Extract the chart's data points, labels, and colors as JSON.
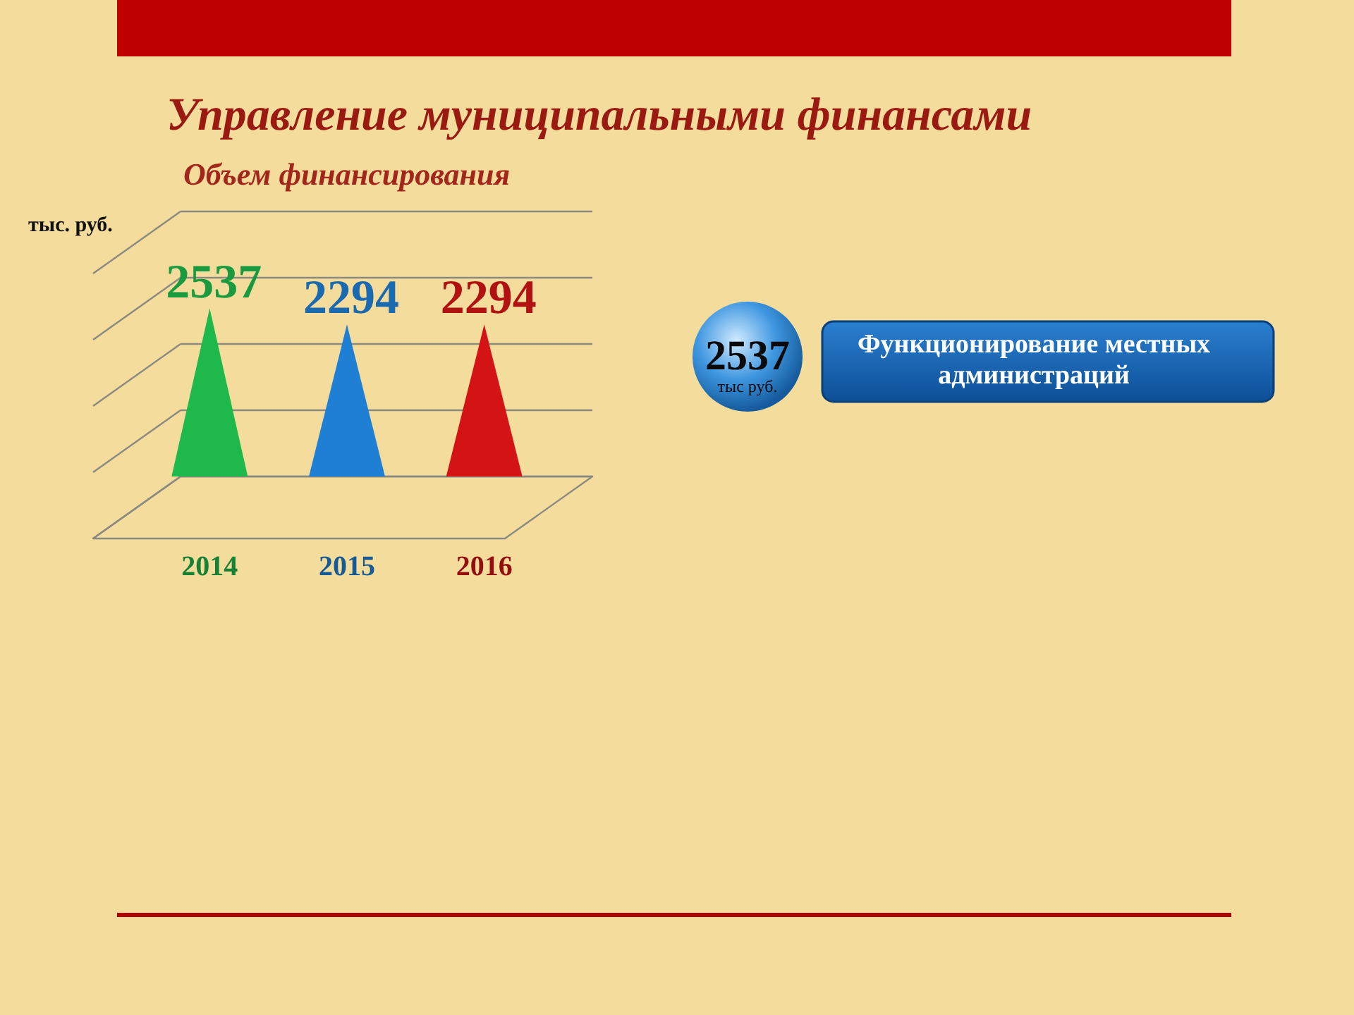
{
  "chart_data": {
    "type": "bar",
    "title": "Управление муниципальными финансами",
    "subtitle": "Объем финансирования",
    "ylabel": "тыс. руб.",
    "categories": [
      "2014",
      "2015",
      "2016"
    ],
    "values": [
      2537,
      2294,
      2294
    ],
    "colors": [
      "#1fb84a",
      "#1f7fd4",
      "#d41414"
    ],
    "ylim": [
      0,
      4000
    ],
    "yticks": [
      {
        "value": 0,
        "label": null
      },
      {
        "value": 1000,
        "label": null
      },
      {
        "value": 2000,
        "label": null
      },
      {
        "value": 3000,
        "label": null
      },
      {
        "value": 4000,
        "label": null
      }
    ],
    "tick_labels": "x",
    "data_labels": true,
    "grid": "y",
    "annotations": [
      "2537",
      "тыс руб.",
      "Функционирование местных администраций"
    ]
  }
}
